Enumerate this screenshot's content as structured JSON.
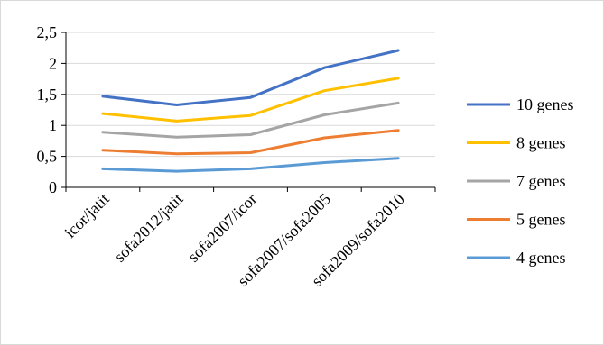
{
  "chart_data": {
    "type": "line",
    "title": "",
    "xlabel": "",
    "ylabel": "",
    "categories": [
      "icor/jatit",
      "sofa2012/jatit",
      "sofa2007/icor",
      "sofa2007/sofa2005",
      "sofa2009/sofa2010"
    ],
    "ylim": [
      0,
      2.5
    ],
    "yticks": [
      "0",
      "0,5",
      "1",
      "1,5",
      "2",
      "2,5"
    ],
    "grid": "horizontal",
    "legend": "right",
    "series": [
      {
        "name": "10 genes",
        "color": "#4472C4",
        "values": [
          1.47,
          1.33,
          1.45,
          1.93,
          2.21
        ]
      },
      {
        "name": "8 genes",
        "color": "#FFC000",
        "values": [
          1.19,
          1.07,
          1.16,
          1.56,
          1.76
        ]
      },
      {
        "name": "7 genes",
        "color": "#A5A5A5",
        "values": [
          0.89,
          0.81,
          0.85,
          1.17,
          1.36
        ]
      },
      {
        "name": "5 genes",
        "color": "#ED7D31",
        "values": [
          0.6,
          0.54,
          0.56,
          0.8,
          0.92
        ]
      },
      {
        "name": "4 genes",
        "color": "#5B9BD5",
        "values": [
          0.3,
          0.26,
          0.3,
          0.4,
          0.47
        ]
      }
    ]
  }
}
